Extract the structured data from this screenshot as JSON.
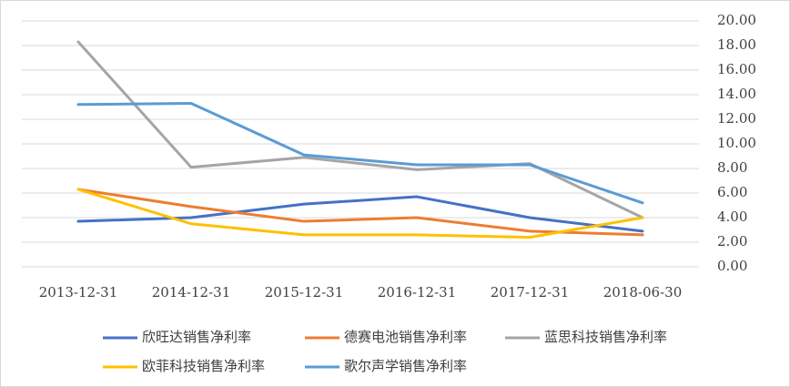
{
  "chart_data": {
    "type": "line",
    "categories": [
      "2013-12-31",
      "2014-12-31",
      "2015-12-31",
      "2016-12-31",
      "2017-12-31",
      "2018-06-30"
    ],
    "series": [
      {
        "name": "欣旺达销售净利率",
        "color": "#4472c4",
        "values": [
          3.7,
          4.0,
          5.1,
          5.7,
          4.0,
          2.9
        ]
      },
      {
        "name": "德赛电池销售净利率",
        "color": "#ed7d31",
        "values": [
          6.3,
          4.9,
          3.7,
          4.0,
          2.9,
          2.6
        ]
      },
      {
        "name": "蓝思科技销售净利率",
        "color": "#a5a5a5",
        "values": [
          18.3,
          8.1,
          8.9,
          7.9,
          8.4,
          4.0
        ]
      },
      {
        "name": "欧菲科技销售净利率",
        "color": "#ffc000",
        "values": [
          6.3,
          3.5,
          2.6,
          2.6,
          2.4,
          4.0
        ]
      },
      {
        "name": "歌尔声学销售净利率",
        "color": "#5b9bd5",
        "values": [
          13.2,
          13.3,
          9.1,
          8.3,
          8.3,
          5.2
        ]
      }
    ],
    "ylim": [
      0,
      20
    ],
    "yticks": [
      {
        "value": 0,
        "label": "0.00"
      },
      {
        "value": 2,
        "label": "2.00"
      },
      {
        "value": 4,
        "label": "4.00"
      },
      {
        "value": 6,
        "label": "6.00"
      },
      {
        "value": 8,
        "label": "8.00"
      },
      {
        "value": 10,
        "label": "10.00"
      },
      {
        "value": 12,
        "label": "12.00"
      },
      {
        "value": 14,
        "label": "14.00"
      },
      {
        "value": 16,
        "label": "16.00"
      },
      {
        "value": 18,
        "label": "18.00"
      },
      {
        "value": 20,
        "label": "20.00"
      }
    ],
    "grid": true,
    "y_axis_side": "right",
    "legend": "bottom"
  }
}
